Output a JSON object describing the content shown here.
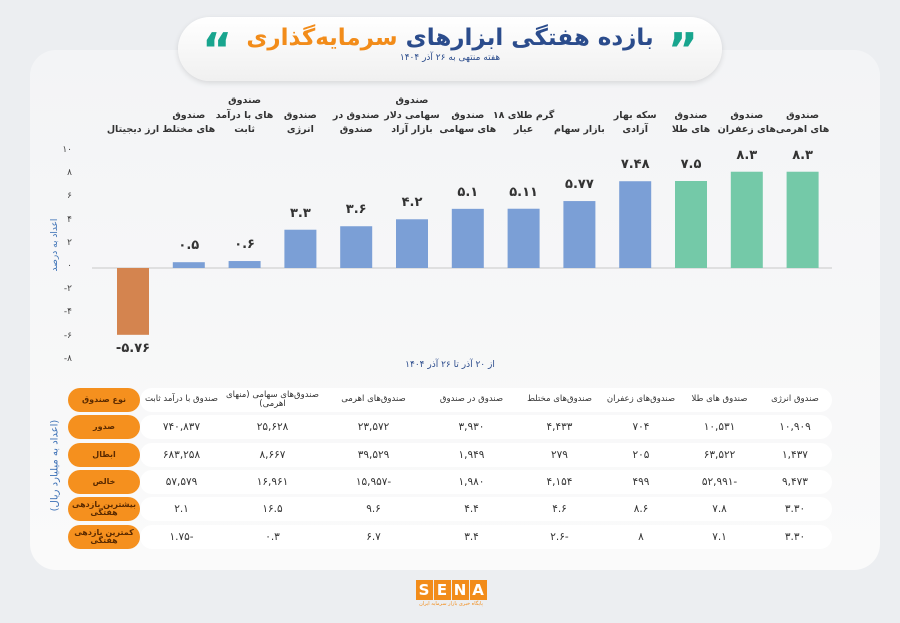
{
  "header": {
    "title_part1": "بازده هفتگی ابزارهای",
    "title_part2": "سرمایه‌گذاری",
    "subtitle": "هفته منتهی به ۲۶ آذر ۱۴۰۴",
    "quote_left": "“",
    "quote_right": "”"
  },
  "chart_data": {
    "type": "bar",
    "title": "بازده هفتگی ابزارهای سرمایه‌گذاری",
    "ylabel": "اعداد به درصد",
    "xnote": "از ۲۰ آذر تا ۲۶ آذر ۱۴۰۴",
    "ylim": [
      -8,
      10
    ],
    "yticks": [
      10,
      8,
      6,
      4,
      2,
      0,
      -2,
      -4,
      -6,
      -8
    ],
    "ytick_labels": [
      "۱۰",
      "۸",
      "۶",
      "۴",
      "۲",
      "۰",
      "-۲",
      "-۴",
      "-۶",
      "-۸"
    ],
    "grid": false,
    "categories": [
      "ارز دیجیتال",
      "صندوق\nهای مختلط",
      "صندوق\nهای با درآمد\nثابت",
      "صندوق\nانرژی",
      "صندوق در\nصندوق",
      "صندوق\nسهامی دلار بازار آزاد",
      "صندوق\nهای سهامی",
      "گرم طلای ۱۸\nعیار",
      "بازار سهام",
      "سکه بهار\nآزادی",
      "صندوق\nهای طلا",
      "صندوق\nهای زعفران",
      "صندوق\nهای اهرمی"
    ],
    "values": [
      -5.76,
      0.5,
      0.6,
      3.3,
      3.6,
      4.2,
      5.1,
      5.11,
      5.77,
      7.48,
      7.5,
      8.3,
      8.3
    ],
    "value_labels": [
      "-۵.۷۶",
      "۰.۵",
      "۰.۶",
      "۳.۳",
      "۳.۶",
      "۴.۲",
      "۵.۱",
      "۵.۱۱",
      "۵.۷۷",
      "۷.۴۸",
      "۷.۵",
      "۸.۳",
      "۸.۳"
    ],
    "colors": [
      "#d4844f",
      "#7b9fd6",
      "#7b9fd6",
      "#7b9fd6",
      "#7b9fd6",
      "#7b9fd6",
      "#7b9fd6",
      "#7b9fd6",
      "#7b9fd6",
      "#7b9fd6",
      "#74c9a8",
      "#74c9a8",
      "#74c9a8"
    ]
  },
  "table": {
    "unit": "(اعداد به میلیارد ریال)",
    "corner": "نوع صندوق",
    "columns": [
      "صندوق با درآمد ثابت",
      "صندوق‌های سهامی (منهای اهرمی)",
      "صندوق‌های اهرمی",
      "صندوق در صندوق",
      "صندوق‌های مختلط",
      "صندوق‌های زعفران",
      "صندوق های طلا",
      "صندوق انرژی"
    ],
    "rows": [
      {
        "label": "صدور",
        "cells": [
          "۷۴۰,۸۳۷",
          "۲۵,۶۲۸",
          "۲۳,۵۷۲",
          "۳,۹۳۰",
          "۴,۴۳۳",
          "۷۰۴",
          "۱۰,۵۳۱",
          "۱۰,۹۰۹"
        ]
      },
      {
        "label": "ابطال",
        "cells": [
          "۶۸۳,۲۵۸",
          "۸,۶۶۷",
          "۳۹,۵۲۹",
          "۱,۹۴۹",
          "۲۷۹",
          "۲۰۵",
          "۶۳,۵۲۲",
          "۱,۴۳۷"
        ]
      },
      {
        "label": "خالص",
        "cells": [
          "۵۷,۵۷۹",
          "۱۶,۹۶۱",
          "-۱۵,۹۵۷",
          "۱,۹۸۰",
          "۴,۱۵۴",
          "۴۹۹",
          "-۵۲,۹۹۱",
          "۹,۴۷۳"
        ]
      },
      {
        "label": "بیشترین بازدهی هفتگی",
        "cells": [
          "۲.۱",
          "۱۶.۵",
          "۹.۶",
          "۴.۴",
          "۴.۶",
          "۸.۶",
          "۷.۸",
          "۳.۳۰"
        ]
      },
      {
        "label": "کمترین بازدهی هفتگی",
        "cells": [
          "-۱.۷۵",
          "۰.۳",
          "۶.۷",
          "۳.۴",
          "-۲.۶",
          "۸",
          "۷.۱",
          "۳.۳۰"
        ]
      }
    ]
  },
  "footer": {
    "logo": "SENA",
    "tagline": "پایگاه خبری بازار سرمایه ایران"
  }
}
